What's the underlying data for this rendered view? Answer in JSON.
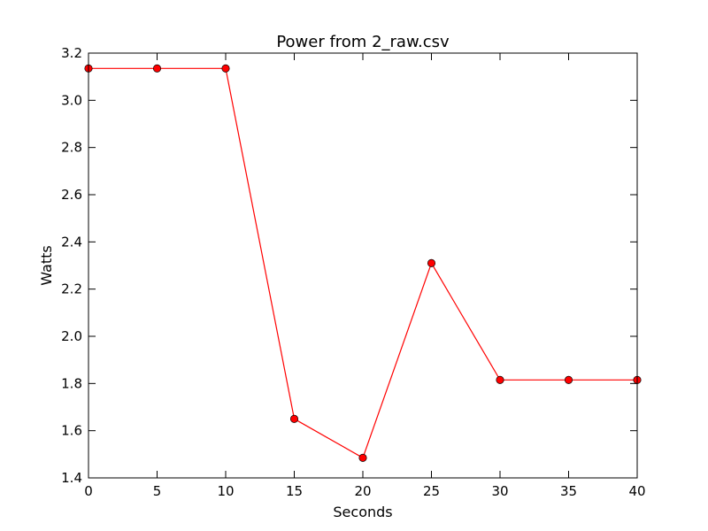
{
  "chart_data": {
    "type": "line",
    "title": "Power from 2_raw.csv",
    "xlabel": "Seconds",
    "ylabel": "Watts",
    "xlim": [
      0,
      40
    ],
    "ylim": [
      1.4,
      3.2
    ],
    "x_ticks": [
      "0",
      "5",
      "10",
      "15",
      "20",
      "25",
      "30",
      "35",
      "40"
    ],
    "y_ticks": [
      "1.4",
      "1.6",
      "1.8",
      "2.0",
      "2.2",
      "2.4",
      "2.6",
      "2.8",
      "3.0",
      "3.2"
    ],
    "grid": false,
    "series": [
      {
        "x": [
          0,
          5,
          10,
          15,
          20,
          25,
          30,
          35,
          40
        ],
        "y": [
          3.135,
          3.135,
          3.135,
          1.65,
          1.485,
          2.31,
          1.815,
          1.815,
          1.815
        ],
        "color": "#ff0000",
        "marker": "circle"
      }
    ]
  }
}
